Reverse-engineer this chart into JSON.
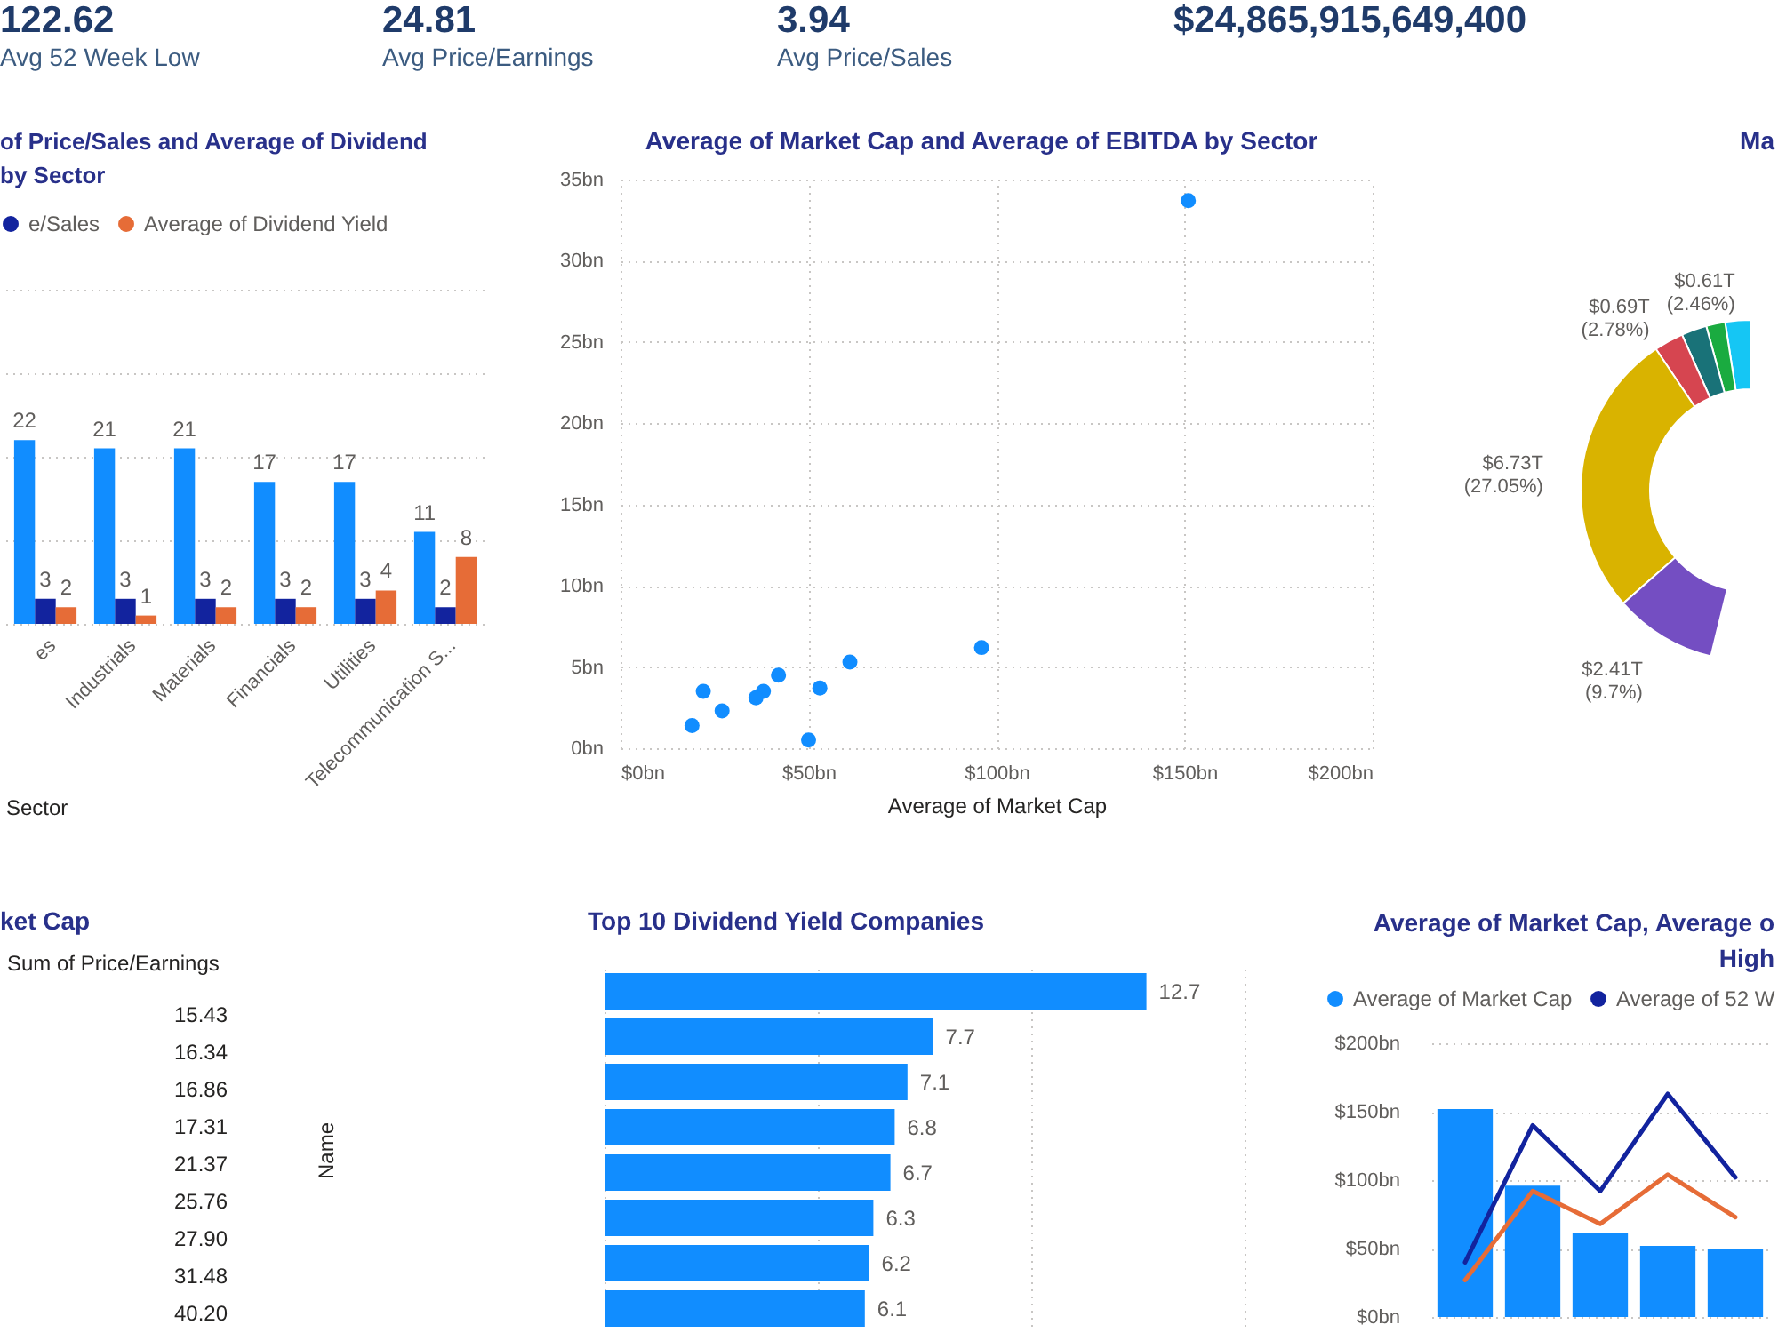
{
  "chart_data": [
    {
      "type": "other",
      "title": "122.62",
      "subtitle": "Avg 52 Week Low"
    },
    {
      "type": "other",
      "title": "24.81",
      "subtitle": "Avg Price/Earnings"
    },
    {
      "type": "other",
      "title": "3.94",
      "subtitle": "Avg Price/Sales"
    },
    {
      "type": "other",
      "title": "$24,865,915,649,400"
    },
    {
      "type": "bar",
      "title": "of Price/Sales and Average of Dividend by Sector",
      "xlabel": "Sector",
      "categories": [
        "es",
        "Industrials",
        "Materials",
        "Financials",
        "Utilities",
        "Telecommunication S..."
      ],
      "series": [
        {
          "color": "#118dff",
          "values": [
            22,
            21,
            21,
            17,
            17,
            11
          ]
        },
        {
          "name": "e/Sales",
          "color": "#12239e",
          "values": [
            3,
            3,
            3,
            3,
            3,
            2
          ]
        },
        {
          "name": "Average of Dividend Yield",
          "color": "#e66c37",
          "values": [
            2,
            1,
            2,
            2,
            4,
            8
          ]
        }
      ],
      "ylim": [
        0,
        40
      ],
      "yticks": [
        {
          "value": 0,
          "label": null
        },
        {
          "value": 10,
          "label": null
        },
        {
          "value": 20,
          "label": null
        },
        {
          "value": 30,
          "label": null
        },
        {
          "value": 40,
          "label": null
        }
      ],
      "grid": "y",
      "legend": "top left",
      "tick_labels": "x",
      "data_labels": true
    },
    {
      "type": "scatter",
      "title": "Average of Market Cap and Average of EBITDA by Sector",
      "xlabel": "Average of Market Cap",
      "x": [
        151,
        96,
        61,
        53,
        50,
        42,
        38,
        36,
        27,
        22,
        19
      ],
      "values": [
        33.7,
        6.2,
        5.3,
        3.7,
        0.5,
        4.5,
        3.5,
        3.1,
        2.3,
        3.5,
        1.4
      ],
      "color": "#118dff",
      "marker": "circle",
      "xlim": [
        0,
        200
      ],
      "xticks": [
        {
          "value": 0,
          "label": "$0bn"
        },
        {
          "value": 50,
          "label": "$50bn"
        },
        {
          "value": 100,
          "label": "$100bn"
        },
        {
          "value": 150,
          "label": "$150bn"
        },
        {
          "value": 200,
          "label": "$200bn"
        }
      ],
      "ylim": [
        0,
        35
      ],
      "yticks": [
        {
          "value": 0,
          "label": "0bn"
        },
        {
          "value": 5,
          "label": "5bn"
        },
        {
          "value": 10,
          "label": "10bn"
        },
        {
          "value": 15,
          "label": "15bn"
        },
        {
          "value": 20,
          "label": "20bn"
        },
        {
          "value": 25,
          "label": "25bn"
        },
        {
          "value": 30,
          "label": "30bn"
        },
        {
          "value": 35,
          "label": "35bn"
        }
      ],
      "grid": true
    },
    {
      "type": "donut",
      "title": "Ma",
      "categories": [
        null,
        null,
        null,
        null,
        null,
        null,
        null,
        null,
        null,
        null,
        null
      ],
      "values": [
        null,
        null,
        null,
        null,
        null,
        9.7,
        27.05,
        2.78,
        2.4,
        1.8,
        2.46
      ],
      "colors": [
        null,
        null,
        null,
        null,
        null,
        "#744ec2",
        "#d9b300",
        "#d64550",
        "#197278",
        "#1aab40",
        "#15c6f4"
      ],
      "value_labels": [
        null,
        null,
        null,
        null,
        null,
        "$2.41T (9.7%)",
        "$6.73T (27.05%)",
        "$0.69T (2.78%)",
        null,
        null,
        "$0.61T (2.46%)"
      ]
    },
    {
      "type": "other",
      "title": "ket Cap",
      "annotations": [
        "Sum of Price/Earnings",
        "15.43",
        "16.34",
        "16.86",
        "17.31",
        "21.37",
        "25.76",
        "27.90",
        "31.48",
        "40.20"
      ]
    },
    {
      "type": "bar",
      "orientation": "horizontal",
      "title": "Top 10 Dividend Yield Companies",
      "ylabel": "Name",
      "categories": [
        null,
        null,
        null,
        null,
        null,
        null,
        null,
        null
      ],
      "values": [
        12.7,
        7.7,
        7.1,
        6.8,
        6.7,
        6.3,
        6.2,
        6.1
      ],
      "color": "#118dff",
      "xlim": [
        0,
        15
      ],
      "xticks": [
        {
          "value": 0,
          "label": null
        },
        {
          "value": 5,
          "label": null
        },
        {
          "value": 10,
          "label": null
        },
        {
          "value": 15,
          "label": null
        }
      ],
      "grid": "x",
      "tick_labels": false,
      "data_labels": true
    },
    {
      "type": "bar",
      "title": "Average of Market Cap, Average o High",
      "categories": [
        null,
        null,
        null,
        null,
        null
      ],
      "series": [
        {
          "name": "Average of Market Cap",
          "type": "bar",
          "color": "#118dff",
          "values": [
            152,
            96,
            61,
            52,
            50
          ]
        },
        {
          "name": "Average of 52 W",
          "type": "line",
          "color": "#12239e",
          "values": [
            40,
            140,
            92,
            163,
            102
          ]
        },
        {
          "type": "line",
          "color": "#e66c37",
          "values": [
            27,
            92,
            68,
            104,
            73
          ]
        }
      ],
      "ylim": [
        0,
        200
      ],
      "yticks": [
        {
          "value": 0,
          "label": "$0bn"
        },
        {
          "value": 50,
          "label": "$50bn"
        },
        {
          "value": 100,
          "label": "$100bn"
        },
        {
          "value": 150,
          "label": "$150bn"
        },
        {
          "value": 200,
          "label": "$200bn"
        }
      ],
      "grid": "y",
      "legend": "top left",
      "tick_labels": "y"
    }
  ]
}
